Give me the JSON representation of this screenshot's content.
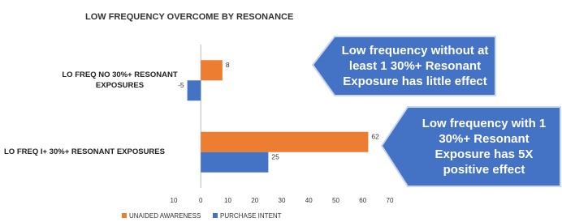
{
  "chart_data": {
    "type": "barh",
    "title": "LOW FREQUENCY OVERCOME BY RESONANCE",
    "categories": [
      "LO FREQ NO 30%+ RESONANT EXPOSURES",
      "LO FREQ I+ 30%+ RESONANT EXPOSURES"
    ],
    "series": [
      {
        "name": "UNAIDED AWARENESS",
        "color": "#ed7d31",
        "values": [
          8,
          62
        ]
      },
      {
        "name": "PURCHASE INTENT",
        "color": "#4472c4",
        "values": [
          -5,
          25
        ]
      }
    ],
    "xlim": [
      -10,
      70
    ],
    "xticks": [
      {
        "value": -10,
        "label": "10"
      },
      0,
      10,
      20,
      30,
      40,
      50,
      60,
      70
    ],
    "grid": false,
    "legend": "bottom",
    "annotations": [
      {
        "text": "Low frequency without at least 1 30%+ Resonant Exposure has little effect",
        "color": "#4472c4"
      },
      {
        "text": "Low frequency with 1 30%+ Resonant Exposure has 5X positive effect",
        "color": "#4472c4"
      }
    ]
  }
}
